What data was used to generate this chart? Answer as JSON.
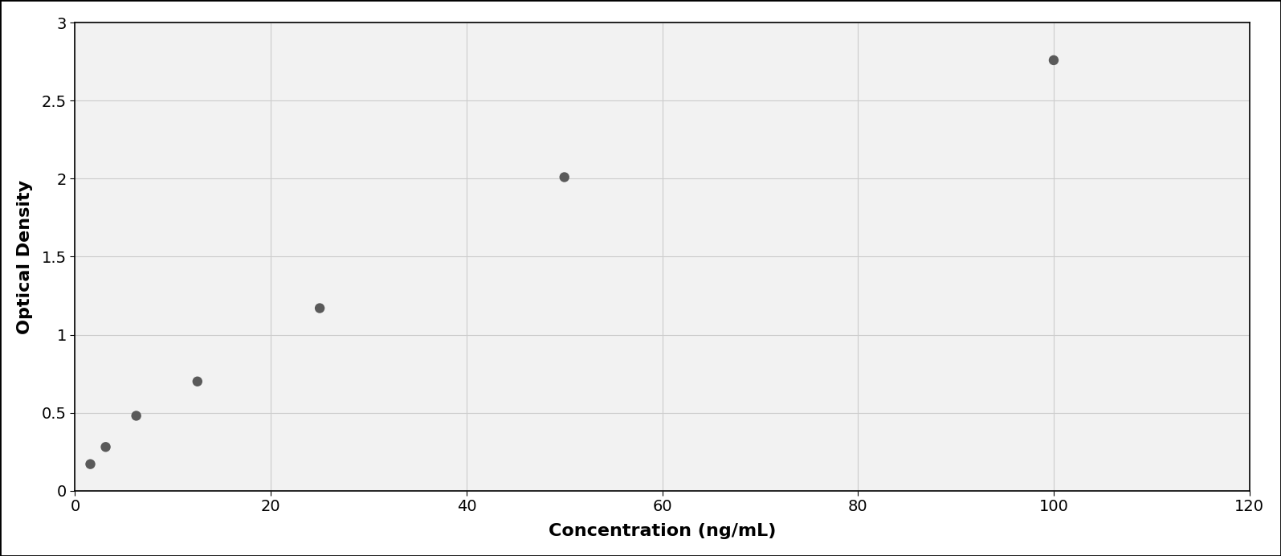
{
  "x_data": [
    1.56,
    3.125,
    6.25,
    12.5,
    25,
    50,
    100
  ],
  "y_data": [
    0.17,
    0.28,
    0.48,
    0.7,
    1.17,
    2.01,
    2.76
  ],
  "xlabel": "Concentration (ng/mL)",
  "ylabel": "Optical Density",
  "xlim": [
    0,
    120
  ],
  "ylim": [
    0,
    3
  ],
  "xticks": [
    0,
    20,
    40,
    60,
    80,
    100,
    120
  ],
  "yticks": [
    0,
    0.5,
    1.0,
    1.5,
    2.0,
    2.5,
    3.0
  ],
  "ytick_labels": [
    "0",
    "0.5",
    "1",
    "1.5",
    "2",
    "2.5",
    "3"
  ],
  "dot_color": "#5a5a5a",
  "line_color": "#5a5a5a",
  "plot_bg_color": "#f2f2f2",
  "outer_bg_color": "#ffffff",
  "grid_color": "#cccccc",
  "dot_size": 80,
  "line_width": 1.8,
  "xlabel_fontsize": 16,
  "ylabel_fontsize": 16,
  "tick_fontsize": 14,
  "xlabel_fontweight": "bold",
  "ylabel_fontweight": "bold"
}
